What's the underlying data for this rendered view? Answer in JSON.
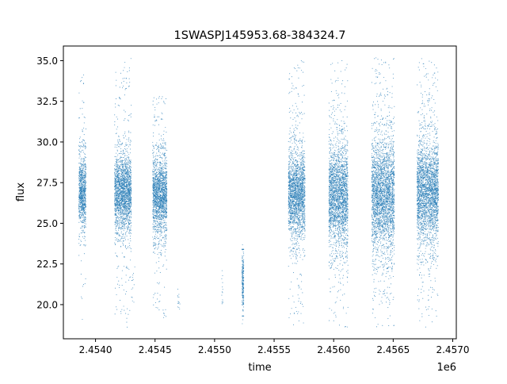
{
  "chart_data": {
    "type": "scatter",
    "title": "1SWASPJ145953.68-384324.7",
    "xlabel": "time",
    "ylabel": "flux",
    "x_offset_label": "1e6",
    "x_tick_labels": [
      "2.4540",
      "2.4545",
      "2.4550",
      "2.4555",
      "2.4560",
      "2.4565",
      "2.4570"
    ],
    "x_ticks": [
      2454000,
      2454500,
      2455000,
      2455500,
      2456000,
      2456500,
      2457000
    ],
    "y_tick_labels": [
      "20.0",
      "22.5",
      "25.0",
      "27.5",
      "30.0",
      "32.5",
      "35.0"
    ],
    "y_ticks": [
      20.0,
      22.5,
      25.0,
      27.5,
      30.0,
      32.5,
      35.0
    ],
    "xlim": [
      2453730,
      2457030
    ],
    "ylim": [
      17.9,
      35.9
    ],
    "grid": false,
    "marker_color": "#1f77b4",
    "point_density": "dense, thousands of small points",
    "series": [
      {
        "values_summary": "observation seasons (time range in days, typical flux range, outlier extent)",
        "segments": [
          {
            "x_start": 2453860,
            "x_end": 2453920,
            "core": [
              24.2,
              29.7
            ],
            "extent": [
              18.6,
              34.2
            ]
          },
          {
            "x_start": 2454160,
            "x_end": 2454300,
            "core": [
              24.0,
              29.8
            ],
            "extent": [
              18.6,
              35.2
            ]
          },
          {
            "x_start": 2454300,
            "x_end": 2454330,
            "core": [
              20.0,
              22.5
            ],
            "extent": [
              20.0,
              22.5
            ]
          },
          {
            "x_start": 2454480,
            "x_end": 2454600,
            "core": [
              23.8,
              29.6
            ],
            "extent": [
              19.2,
              32.8
            ]
          },
          {
            "x_start": 2454690,
            "x_end": 2454710,
            "core": [
              19.5,
              21.0
            ],
            "extent": [
              19.5,
              21.0
            ]
          },
          {
            "x_start": 2455060,
            "x_end": 2455070,
            "core": [
              19.5,
              22.2
            ],
            "extent": [
              19.5,
              22.2
            ]
          },
          {
            "x_start": 2455230,
            "x_end": 2455245,
            "core": [
              19.3,
              23.4
            ],
            "extent": [
              19.3,
              23.4
            ]
          },
          {
            "x_start": 2455620,
            "x_end": 2455760,
            "core": [
              23.5,
              30.0
            ],
            "extent": [
              18.7,
              35.1
            ]
          },
          {
            "x_start": 2455960,
            "x_end": 2456120,
            "core": [
              23.0,
              30.5
            ],
            "extent": [
              18.6,
              35.0
            ]
          },
          {
            "x_start": 2456320,
            "x_end": 2456510,
            "core": [
              22.5,
              31.0
            ],
            "extent": [
              18.6,
              35.2
            ]
          },
          {
            "x_start": 2456700,
            "x_end": 2456880,
            "core": [
              23.0,
              30.8
            ],
            "extent": [
              18.6,
              35.2
            ]
          }
        ]
      }
    ]
  }
}
